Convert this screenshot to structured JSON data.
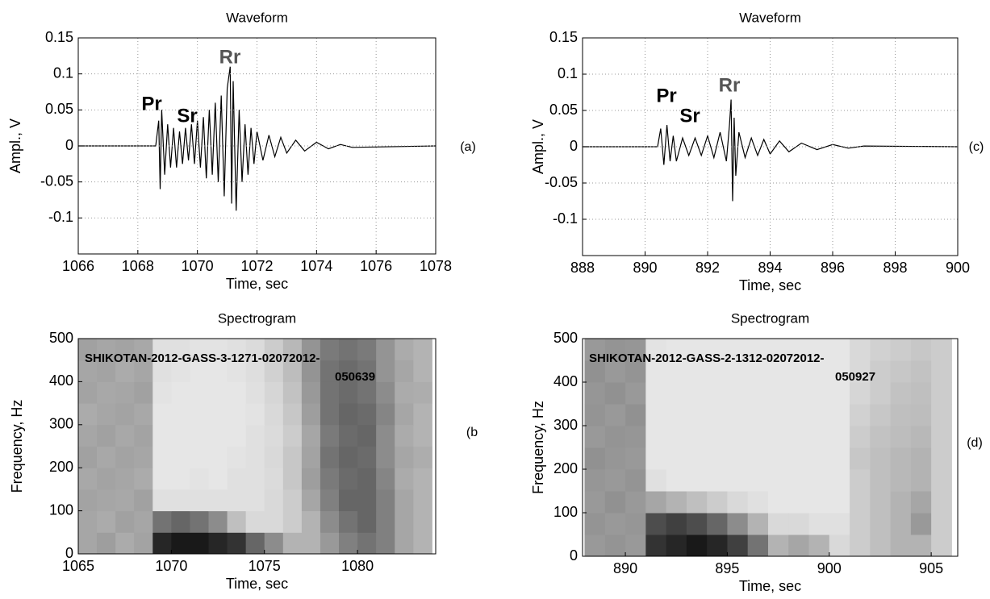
{
  "chart_data": [
    {
      "type": "line",
      "title": "Waveform",
      "xlabel": "Time, sec",
      "ylabel": "Ampl., V",
      "panel_label": "(a)",
      "annotations": [
        "Pr",
        "Sr",
        "Rr"
      ],
      "x": [
        1066,
        1068.6,
        1068.7,
        1068.75,
        1068.8,
        1068.9,
        1069.0,
        1069.1,
        1069.2,
        1069.3,
        1069.4,
        1069.5,
        1069.6,
        1069.7,
        1069.8,
        1069.9,
        1070.0,
        1070.1,
        1070.2,
        1070.3,
        1070.4,
        1070.5,
        1070.6,
        1070.7,
        1070.8,
        1070.9,
        1071.0,
        1071.1,
        1071.15,
        1071.2,
        1071.3,
        1071.4,
        1071.5,
        1071.6,
        1071.7,
        1071.8,
        1071.9,
        1072.0,
        1072.2,
        1072.4,
        1072.6,
        1072.8,
        1073.0,
        1073.3,
        1073.6,
        1074.0,
        1074.4,
        1074.8,
        1075.2,
        1078
      ],
      "values": [
        0,
        0,
        0.035,
        -0.06,
        0.05,
        -0.04,
        0.03,
        -0.03,
        0.025,
        -0.03,
        0.02,
        -0.025,
        0.025,
        -0.02,
        0.03,
        -0.025,
        0.035,
        -0.03,
        0.04,
        -0.045,
        0.05,
        -0.04,
        0.06,
        -0.05,
        0.07,
        -0.07,
        0.08,
        0.11,
        -0.08,
        0.09,
        -0.09,
        0.05,
        -0.05,
        0.03,
        -0.04,
        0.025,
        -0.025,
        0.02,
        -0.02,
        0.015,
        -0.015,
        0.012,
        -0.01,
        0.008,
        -0.007,
        0.005,
        -0.004,
        0.002,
        -0.002,
        0
      ],
      "color": "#000000",
      "xlim": [
        1066,
        1078
      ],
      "xticks": [
        1066,
        1068,
        1070,
        1072,
        1074,
        1076,
        1078
      ],
      "ylim": [
        -0.15,
        0.15
      ],
      "yticks": [
        0.15,
        0.1,
        0.05,
        0,
        -0.05,
        -0.1
      ],
      "grid": true
    },
    {
      "type": "heatmap",
      "title": "Spectrogram",
      "xlabel": "Time, sec",
      "ylabel": "Frequency, Hz",
      "panel_label": "(b",
      "annotations": [
        "SHIKOTAN-2012-GASS-3-1271-02072012-",
        "050639"
      ],
      "x": [
        1065,
        1066,
        1067,
        1068,
        1069,
        1070,
        1071,
        1072,
        1073,
        1074,
        1075,
        1076,
        1077,
        1078,
        1079,
        1080,
        1081,
        1082,
        1083,
        1084
      ],
      "y": [
        0,
        50,
        100,
        150,
        200,
        250,
        300,
        350,
        400,
        450,
        500
      ],
      "values": [
        [
          0.35,
          0.38,
          0.33,
          0.36,
          0.85,
          0.9,
          0.9,
          0.85,
          0.8,
          0.6,
          0.45,
          0.3,
          0.3,
          0.4,
          0.5,
          0.55,
          0.5,
          0.35,
          0.3
        ],
        [
          0.35,
          0.33,
          0.37,
          0.35,
          0.55,
          0.6,
          0.55,
          0.45,
          0.25,
          0.15,
          0.15,
          0.2,
          0.3,
          0.45,
          0.55,
          0.6,
          0.5,
          0.35,
          0.3
        ],
        [
          0.36,
          0.35,
          0.34,
          0.37,
          0.12,
          0.12,
          0.12,
          0.12,
          0.12,
          0.12,
          0.15,
          0.2,
          0.35,
          0.5,
          0.6,
          0.6,
          0.5,
          0.35,
          0.3
        ],
        [
          0.34,
          0.36,
          0.35,
          0.33,
          0.1,
          0.1,
          0.11,
          0.1,
          0.12,
          0.12,
          0.14,
          0.22,
          0.38,
          0.52,
          0.58,
          0.6,
          0.48,
          0.33,
          0.3
        ],
        [
          0.37,
          0.34,
          0.36,
          0.35,
          0.1,
          0.1,
          0.1,
          0.1,
          0.11,
          0.12,
          0.15,
          0.22,
          0.36,
          0.55,
          0.6,
          0.58,
          0.45,
          0.35,
          0.32
        ],
        [
          0.35,
          0.37,
          0.34,
          0.36,
          0.1,
          0.1,
          0.1,
          0.1,
          0.1,
          0.12,
          0.14,
          0.2,
          0.35,
          0.52,
          0.58,
          0.6,
          0.45,
          0.33,
          0.3
        ],
        [
          0.33,
          0.35,
          0.36,
          0.34,
          0.1,
          0.1,
          0.1,
          0.1,
          0.1,
          0.11,
          0.15,
          0.22,
          0.38,
          0.55,
          0.6,
          0.58,
          0.48,
          0.35,
          0.3
        ],
        [
          0.36,
          0.34,
          0.35,
          0.37,
          0.11,
          0.1,
          0.1,
          0.1,
          0.1,
          0.12,
          0.16,
          0.24,
          0.4,
          0.55,
          0.58,
          0.55,
          0.45,
          0.33,
          0.32
        ],
        [
          0.35,
          0.36,
          0.33,
          0.35,
          0.12,
          0.11,
          0.1,
          0.1,
          0.11,
          0.13,
          0.18,
          0.26,
          0.42,
          0.55,
          0.58,
          0.55,
          0.42,
          0.35,
          0.3
        ],
        [
          0.37,
          0.35,
          0.36,
          0.34,
          0.12,
          0.12,
          0.11,
          0.11,
          0.12,
          0.14,
          0.2,
          0.28,
          0.42,
          0.52,
          0.55,
          0.52,
          0.42,
          0.33,
          0.3
        ]
      ],
      "xlim": [
        1065,
        1084.2
      ],
      "xticks": [
        1065,
        1070,
        1075,
        1080
      ],
      "ylim": [
        0,
        500
      ],
      "yticks": [
        0,
        100,
        200,
        300,
        400,
        500
      ]
    },
    {
      "type": "line",
      "title": "Waveform",
      "xlabel": "Time, sec",
      "ylabel": "Ampl., V",
      "panel_label": "(c)",
      "annotations": [
        "Pr",
        "Sr",
        "Rr"
      ],
      "x": [
        888,
        890.4,
        890.5,
        890.6,
        890.7,
        890.8,
        890.9,
        891.0,
        891.2,
        891.4,
        891.6,
        891.8,
        892.0,
        892.2,
        892.4,
        892.6,
        892.7,
        892.75,
        892.8,
        892.85,
        892.9,
        893.0,
        893.2,
        893.4,
        893.6,
        893.8,
        894.0,
        894.3,
        894.6,
        895.0,
        895.5,
        896.0,
        896.5,
        897,
        900
      ],
      "values": [
        0,
        0,
        0.025,
        -0.025,
        0.03,
        -0.02,
        0.015,
        -0.02,
        0.012,
        -0.012,
        0.012,
        -0.012,
        0.015,
        -0.015,
        0.02,
        -0.02,
        0.03,
        0.065,
        -0.075,
        0.04,
        -0.04,
        0.02,
        -0.015,
        0.012,
        -0.012,
        0.01,
        -0.01,
        0.008,
        -0.007,
        0.005,
        -0.004,
        0.003,
        -0.002,
        0.001,
        0
      ],
      "color": "#000000",
      "xlim": [
        888,
        900
      ],
      "xticks": [
        888,
        890,
        892,
        894,
        896,
        898,
        900
      ],
      "ylim": [
        -0.15,
        0.15
      ],
      "yticks": [
        0.15,
        0.1,
        0.05,
        0,
        -0.05,
        -0.1
      ],
      "grid": true
    },
    {
      "type": "heatmap",
      "title": "Spectrogram",
      "xlabel": "Time, sec",
      "ylabel": "Frequency, Hz",
      "panel_label": "(d)",
      "annotations": [
        "SHIKOTAN-2012-GASS-2-1312-02072012-",
        "050927"
      ],
      "x": [
        888,
        889,
        890,
        891,
        892,
        893,
        894,
        895,
        896,
        897,
        898,
        899,
        900,
        901,
        902,
        903,
        904,
        905,
        906
      ],
      "y": [
        0,
        50,
        100,
        150,
        200,
        250,
        300,
        350,
        400,
        450,
        500
      ],
      "values": [
        [
          0.4,
          0.42,
          0.4,
          0.8,
          0.85,
          0.9,
          0.85,
          0.75,
          0.55,
          0.3,
          0.35,
          0.3,
          0.15,
          0.2,
          0.25,
          0.3,
          0.3,
          0.2
        ],
        [
          0.42,
          0.4,
          0.41,
          0.7,
          0.75,
          0.7,
          0.6,
          0.45,
          0.3,
          0.15,
          0.15,
          0.12,
          0.12,
          0.2,
          0.25,
          0.3,
          0.4,
          0.2
        ],
        [
          0.4,
          0.43,
          0.4,
          0.35,
          0.3,
          0.25,
          0.2,
          0.15,
          0.12,
          0.1,
          0.1,
          0.1,
          0.1,
          0.2,
          0.25,
          0.3,
          0.35,
          0.2
        ],
        [
          0.41,
          0.4,
          0.42,
          0.12,
          0.1,
          0.1,
          0.1,
          0.1,
          0.1,
          0.1,
          0.1,
          0.1,
          0.1,
          0.2,
          0.25,
          0.28,
          0.3,
          0.2
        ],
        [
          0.43,
          0.41,
          0.4,
          0.1,
          0.1,
          0.1,
          0.1,
          0.1,
          0.1,
          0.1,
          0.1,
          0.1,
          0.1,
          0.22,
          0.25,
          0.28,
          0.3,
          0.2
        ],
        [
          0.4,
          0.42,
          0.41,
          0.1,
          0.1,
          0.1,
          0.1,
          0.1,
          0.1,
          0.1,
          0.1,
          0.1,
          0.1,
          0.2,
          0.24,
          0.26,
          0.28,
          0.2
        ],
        [
          0.42,
          0.4,
          0.43,
          0.1,
          0.1,
          0.1,
          0.1,
          0.1,
          0.1,
          0.1,
          0.1,
          0.1,
          0.1,
          0.18,
          0.22,
          0.25,
          0.26,
          0.2
        ],
        [
          0.41,
          0.43,
          0.4,
          0.1,
          0.1,
          0.1,
          0.1,
          0.1,
          0.1,
          0.1,
          0.1,
          0.1,
          0.1,
          0.16,
          0.2,
          0.24,
          0.25,
          0.2
        ],
        [
          0.43,
          0.4,
          0.42,
          0.1,
          0.1,
          0.1,
          0.1,
          0.1,
          0.1,
          0.1,
          0.1,
          0.1,
          0.1,
          0.15,
          0.2,
          0.22,
          0.24,
          0.2
        ],
        [
          0.4,
          0.42,
          0.41,
          0.11,
          0.1,
          0.1,
          0.1,
          0.1,
          0.1,
          0.1,
          0.1,
          0.1,
          0.1,
          0.15,
          0.18,
          0.2,
          0.22,
          0.2
        ]
      ],
      "xlim": [
        887.9,
        906.3
      ],
      "xticks": [
        890,
        895,
        900,
        905
      ],
      "ylim": [
        0,
        500
      ],
      "yticks": [
        0,
        100,
        200,
        300,
        400,
        500
      ]
    }
  ]
}
